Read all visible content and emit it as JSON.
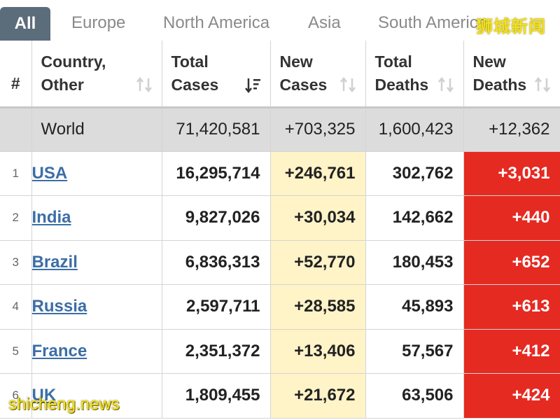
{
  "tabs": [
    {
      "label": "All",
      "active": true
    },
    {
      "label": "Europe",
      "active": false
    },
    {
      "label": "North America",
      "active": false
    },
    {
      "label": "Asia",
      "active": false
    },
    {
      "label": "South America",
      "active": false
    }
  ],
  "watermarks": {
    "top": "狮城新闻",
    "bottom": "shicheng.news"
  },
  "columns": [
    {
      "line1": "#",
      "line2": ""
    },
    {
      "line1": "Country,",
      "line2": "Other"
    },
    {
      "line1": "Total",
      "line2": "Cases"
    },
    {
      "line1": "New",
      "line2": "Cases"
    },
    {
      "line1": "Total",
      "line2": "Deaths"
    },
    {
      "line1": "New",
      "line2": "Deaths"
    }
  ],
  "world": {
    "country": "World",
    "total_cases": "71,420,581",
    "new_cases": "+703,325",
    "total_deaths": "1,600,423",
    "new_deaths": "+12,362"
  },
  "rows": [
    {
      "rank": "1",
      "country": "USA",
      "total_cases": "16,295,714",
      "new_cases": "+246,761",
      "total_deaths": "302,762",
      "new_deaths": "+3,031"
    },
    {
      "rank": "2",
      "country": "India",
      "total_cases": "9,827,026",
      "new_cases": "+30,034",
      "total_deaths": "142,662",
      "new_deaths": "+440"
    },
    {
      "rank": "3",
      "country": "Brazil",
      "total_cases": "6,836,313",
      "new_cases": "+52,770",
      "total_deaths": "180,453",
      "new_deaths": "+652"
    },
    {
      "rank": "4",
      "country": "Russia",
      "total_cases": "2,597,711",
      "new_cases": "+28,585",
      "total_deaths": "45,893",
      "new_deaths": "+613"
    },
    {
      "rank": "5",
      "country": "France",
      "total_cases": "2,351,372",
      "new_cases": "+13,406",
      "total_deaths": "57,567",
      "new_deaths": "+412"
    },
    {
      "rank": "6",
      "country": "UK",
      "total_cases": "1,809,455",
      "new_cases": "+21,672",
      "total_deaths": "63,506",
      "new_deaths": "+424"
    }
  ],
  "colors": {
    "active_tab": "#5b6c7b",
    "world_row": "#dcdcdc",
    "new_cases_bg": "#fff3c8",
    "new_deaths_bg": "#e52a22",
    "country_link": "#3c6ea6"
  }
}
